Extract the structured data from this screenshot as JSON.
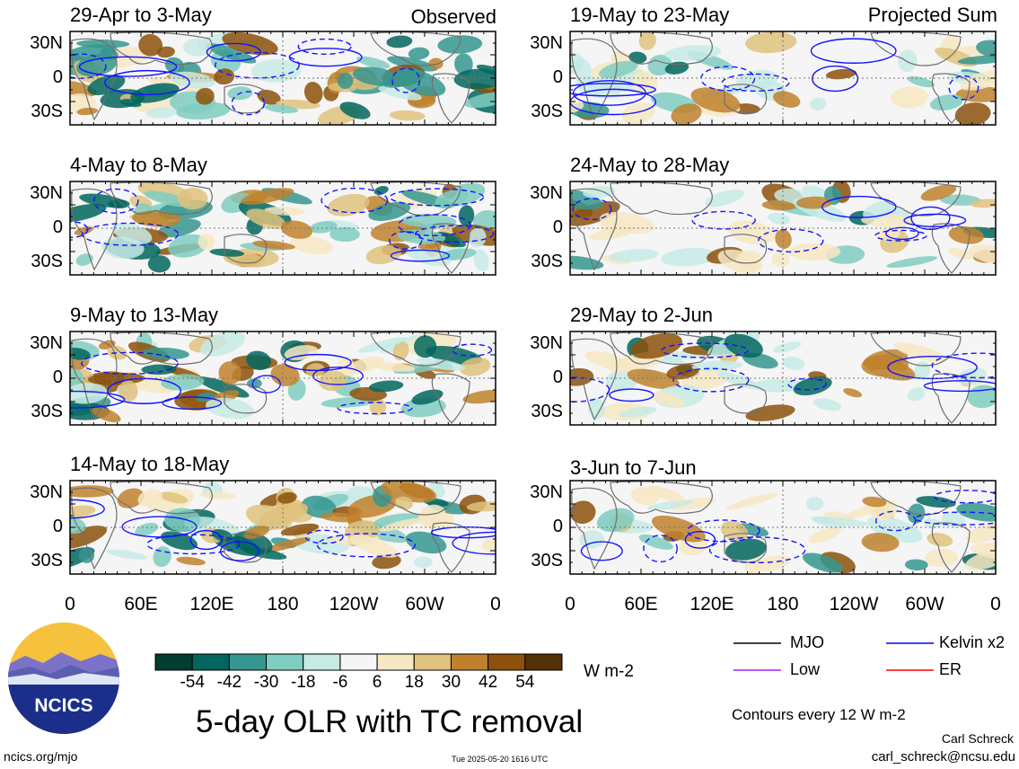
{
  "panels_left": {
    "tag": "Observed",
    "periods": [
      "29-Apr to 3-May",
      "4-May to 8-May",
      "9-May to 13-May",
      "14-May to 18-May"
    ]
  },
  "panels_right": {
    "tag": "Projected Sum",
    "periods": [
      "19-May to 23-May",
      "24-May to 28-May",
      "29-May to 2-Jun",
      "3-Jun to 7-Jun"
    ]
  },
  "lat_labels": [
    "30N",
    "0",
    "30S"
  ],
  "lon_labels": [
    "0",
    "60E",
    "120E",
    "180",
    "120W",
    "60W",
    "0"
  ],
  "colorbar": {
    "tick_labels": [
      "-54",
      "-42",
      "-30",
      "-18",
      "-6",
      "6",
      "18",
      "30",
      "42",
      "54"
    ],
    "unit": "W m-2",
    "colors": [
      "#003c30",
      "#01665e",
      "#35978f",
      "#80cdc1",
      "#c7eae5",
      "#f5f5f5",
      "#f6e8c3",
      "#dfc27d",
      "#bf812d",
      "#8c510a",
      "#543005"
    ]
  },
  "legend": {
    "items": [
      {
        "label": "MJO",
        "color": "#000000"
      },
      {
        "label": "Kelvin x2",
        "color": "#0000ff"
      },
      {
        "label": "Low",
        "color": "#a020f0"
      },
      {
        "label": "ER",
        "color": "#ff0000"
      }
    ],
    "contour_note": "Contours every 12 W m-2"
  },
  "logo": {
    "text": "NCICS"
  },
  "main_title": "5-day OLR with TC removal",
  "footer": {
    "url": "ncics.org/mjo",
    "timestamp": "Tue 2025-05-20 1616 UTC",
    "author": "Carl Schreck",
    "email": "carl_schreck@ncsu.edu"
  }
}
